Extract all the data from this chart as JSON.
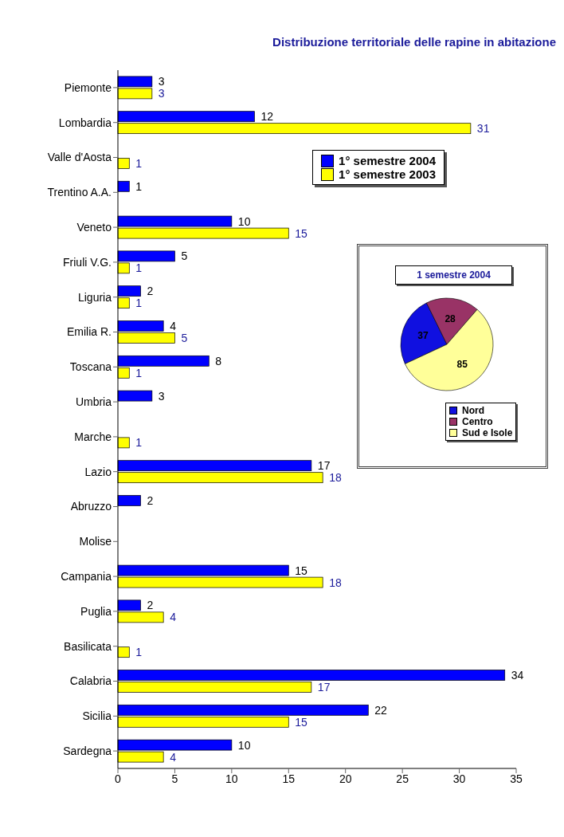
{
  "chart_data": [
    {
      "type": "bar",
      "orientation": "horizontal",
      "title": "Distribuzione territoriale delle rapine in abitazione",
      "categories": [
        "Piemonte",
        "Lombardia",
        "Valle d'Aosta",
        "Trentino A.A.",
        "Veneto",
        "Friuli V.G.",
        "Liguria",
        "Emilia R.",
        "Toscana",
        "Umbria",
        "Marche",
        "Lazio",
        "Abruzzo",
        "Molise",
        "Campania",
        "Puglia",
        "Basilicata",
        "Calabria",
        "Sicilia",
        "Sardegna"
      ],
      "series": [
        {
          "name": "1° semestre 2004",
          "color": "#0000ff",
          "values": [
            3,
            12,
            0,
            1,
            10,
            5,
            2,
            4,
            8,
            3,
            0,
            17,
            2,
            0,
            15,
            2,
            0,
            34,
            22,
            10
          ],
          "value_labels": [
            "3",
            "12",
            null,
            "1",
            "10",
            "5",
            "2",
            "4",
            "8",
            "3",
            null,
            "17",
            "2",
            null,
            "15",
            "2",
            null,
            "34",
            "22",
            "10"
          ]
        },
        {
          "name": "1° semestre 2003",
          "color": "#ffff00",
          "values": [
            3,
            31,
            1,
            0,
            15,
            1,
            1,
            5,
            1,
            0,
            1,
            18,
            0,
            0,
            18,
            4,
            1,
            17,
            15,
            4
          ],
          "value_labels": [
            "3",
            "31",
            "1",
            null,
            "15",
            "1",
            "1",
            "5",
            "1",
            null,
            "1",
            "18",
            null,
            null,
            "18",
            "4",
            "1",
            "17",
            "15",
            "4"
          ]
        }
      ],
      "xlim": [
        0,
        35
      ],
      "xticks": [
        0,
        5,
        10,
        15,
        20,
        25,
        30,
        35
      ],
      "grid": false,
      "legend": "top right"
    },
    {
      "type": "pie",
      "title": "1 semestre 2004",
      "categories": [
        "Nord",
        "Centro",
        "Sud e Isole"
      ],
      "values": [
        37,
        28,
        85
      ],
      "colors": [
        "#1010e0",
        "#993366",
        "#ffff99"
      ],
      "data_labels": true,
      "legend": "bottom right"
    }
  ]
}
